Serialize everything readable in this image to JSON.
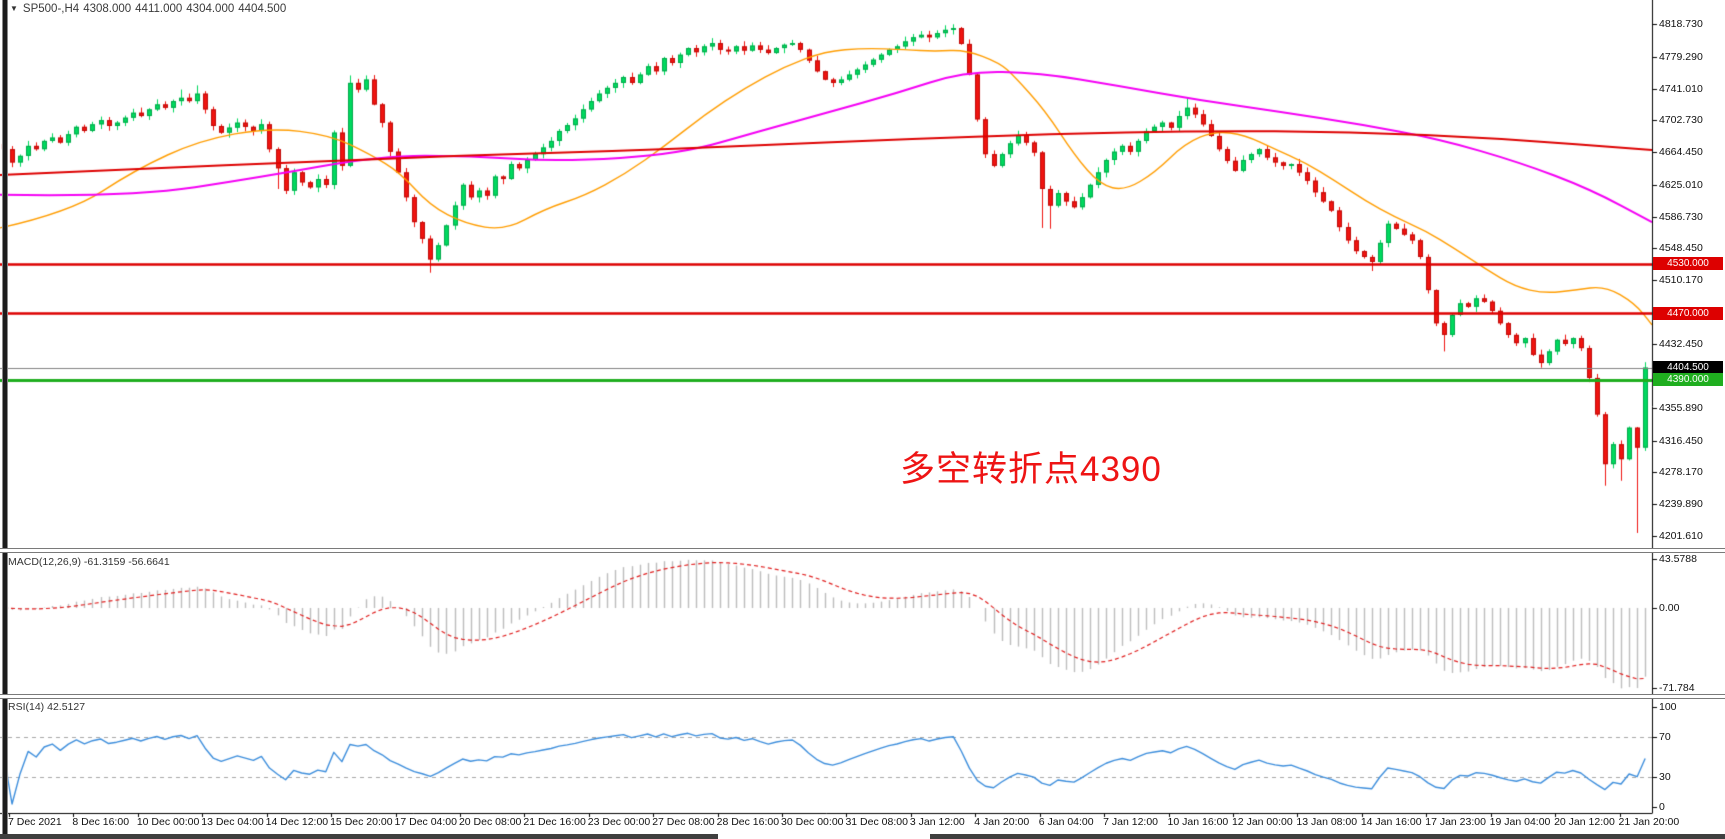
{
  "title": {
    "symbol_period": "SP500-,H4",
    "open": "4308.000",
    "high": "4411.000",
    "low": "4304.000",
    "close": "4404.500"
  },
  "annotation": {
    "text": "多空转折点4390",
    "color": "#ee1414"
  },
  "price_axis": {
    "ticks": [
      {
        "label": "4818.730",
        "value": 4818.73
      },
      {
        "label": "4779.290",
        "value": 4779.29
      },
      {
        "label": "4741.010",
        "value": 4741.01
      },
      {
        "label": "4702.730",
        "value": 4702.73
      },
      {
        "label": "4664.450",
        "value": 4664.45
      },
      {
        "label": "4625.010",
        "value": 4625.01
      },
      {
        "label": "4586.730",
        "value": 4586.73
      },
      {
        "label": "4548.450",
        "value": 4548.45
      },
      {
        "label": "4510.170",
        "value": 4510.17
      },
      {
        "label": "4432.450",
        "value": 4432.45
      },
      {
        "label": "4355.890",
        "value": 4355.89
      },
      {
        "label": "4316.450",
        "value": 4316.45
      },
      {
        "label": "4278.170",
        "value": 4278.17
      },
      {
        "label": "4239.890",
        "value": 4239.89
      },
      {
        "label": "4201.610",
        "value": 4201.61
      }
    ],
    "badges": [
      {
        "label": "4530.000",
        "value": 4530,
        "bg": "#dd0000"
      },
      {
        "label": "4470.000",
        "value": 4470,
        "bg": "#dd0000"
      },
      {
        "label": "4404.500",
        "value": 4404.5,
        "bg": "#000000"
      },
      {
        "label": "4390.000",
        "value": 4390,
        "bg": "#1fae1f"
      }
    ]
  },
  "hlines": [
    {
      "value": 4530,
      "color": "#dd0000",
      "width": 2.5
    },
    {
      "value": 4470,
      "color": "#dd0000",
      "width": 2.5
    },
    {
      "value": 4404.5,
      "color": "#808080",
      "width": 1
    },
    {
      "value": 4390,
      "color": "#1fae1f",
      "width": 3
    }
  ],
  "time_axis": {
    "labels": [
      "7 Dec 2021",
      "8 Dec 16:00",
      "10 Dec 00:00",
      "13 Dec 04:00",
      "14 Dec 12:00",
      "15 Dec 20:00",
      "17 Dec 04:00",
      "20 Dec 08:00",
      "21 Dec 16:00",
      "23 Dec 00:00",
      "27 Dec 08:00",
      "28 Dec 16:00",
      "30 Dec 00:00",
      "31 Dec 08:00",
      "3 Jan 12:00",
      "4 Jan 20:00",
      "6 Jan 04:00",
      "7 Jan 12:00",
      "10 Jan 16:00",
      "12 Jan 00:00",
      "13 Jan 08:00",
      "14 Jan 16:00",
      "17 Jan 23:00",
      "19 Jan 04:00",
      "20 Jan 12:00",
      "21 Jan 20:00"
    ]
  },
  "macd": {
    "label": "MACD(12,26,9)",
    "values_text": "-61.3159 -56.6641",
    "last_main": -61.3159,
    "last_signal": -56.6641,
    "params": {
      "fast": 12,
      "slow": 26,
      "signal": 9
    },
    "scale_labels": [
      {
        "label": "43.5788",
        "value": 43.5788
      },
      {
        "label": "0.00",
        "value": 0
      },
      {
        "label": "-71.784",
        "value": -71.784
      }
    ]
  },
  "rsi": {
    "label": "RSI(14)",
    "value_text": "42.5127",
    "last": 42.5127,
    "period": 14,
    "levels": [
      70,
      30
    ],
    "scale_labels": [
      {
        "label": "100",
        "value": 100
      },
      {
        "label": "70",
        "value": 70
      },
      {
        "label": "30",
        "value": 30
      },
      {
        "label": "0",
        "value": 0
      }
    ]
  },
  "colors": {
    "up": "#00d95e",
    "up_edge": "#00a84a",
    "down": "#ef1410",
    "down_edge": "#bf0a08",
    "ma_fast": "#ff9d00",
    "ma_mid": "#f400f4",
    "ma_slow": "#dd0000",
    "macd_hist": "#bdbdbd",
    "macd_signal": "#e02020",
    "rsi_line": "#3d8edc",
    "axis": "#000000",
    "level_dash": "#a6a6a6"
  },
  "chart_data": {
    "type": "candlestick",
    "symbol": "SP500",
    "timeframe": "H4",
    "title": "SP500-,H4 4308.000 4411.000 4304.000 4404.500",
    "ylim": [
      4196.5,
      4848
    ],
    "bars": 205,
    "closes": [
      4668,
      4652,
      4660,
      4672,
      4668,
      4678,
      4682,
      4676,
      4686,
      4695,
      4690,
      4698,
      4703,
      4696,
      4700,
      4706,
      4712,
      4708,
      4716,
      4722,
      4718,
      4726,
      4730,
      4726,
      4735,
      4716,
      4696,
      4688,
      4694,
      4700,
      4695,
      4690,
      4698,
      4668,
      4645,
      4618,
      4640,
      4628,
      4622,
      4632,
      4625,
      4688,
      4648,
      4748,
      4740,
      4752,
      4722,
      4700,
      4665,
      4640,
      4610,
      4580,
      4560,
      4535,
      4552,
      4576,
      4600,
      4625,
      4610,
      4618,
      4612,
      4635,
      4632,
      4650,
      4645,
      4655,
      4662,
      4670,
      4678,
      4690,
      4697,
      4705,
      4716,
      4726,
      4735,
      4742,
      4748,
      4755,
      4748,
      4758,
      4768,
      4762,
      4778,
      4772,
      4782,
      4790,
      4785,
      4792,
      4796,
      4788,
      4786,
      4792,
      4787,
      4793,
      4788,
      4784,
      4790,
      4794,
      4796,
      4788,
      4775,
      4762,
      4752,
      4748,
      4752,
      4758,
      4764,
      4770,
      4776,
      4782,
      4788,
      4792,
      4798,
      4803,
      4806,
      4803,
      4808,
      4812,
      4814,
      4795,
      4758,
      4704,
      4662,
      4648,
      4662,
      4675,
      4685,
      4676,
      4664,
      4620,
      4600,
      4615,
      4605,
      4598,
      4610,
      4625,
      4640,
      4655,
      4665,
      4672,
      4665,
      4678,
      4690,
      4695,
      4700,
      4694,
      4708,
      4718,
      4710,
      4698,
      4684,
      4668,
      4654,
      4642,
      4655,
      4662,
      4668,
      4658,
      4652,
      4648,
      4650,
      4640,
      4630,
      4616,
      4605,
      4594,
      4574,
      4558,
      4545,
      4538,
      4532,
      4555,
      4578,
      4572,
      4565,
      4558,
      4538,
      4498,
      4458,
      4444,
      4468,
      4482,
      4478,
      4488,
      4484,
      4473,
      4458,
      4444,
      4434,
      4440,
      4420,
      4410,
      4424,
      4438,
      4433,
      4440,
      4428,
      4392,
      4348,
      4288,
      4312,
      4294,
      4332,
      4308,
      4404.5
    ],
    "wick_highs": {
      "22": 4740,
      "24": 4745,
      "43": 4757,
      "45": 4757,
      "88": 4802,
      "118": 4818.7,
      "147": 4730
    },
    "wick_lows": {
      "34": 4620,
      "53": 4519,
      "129": 4573,
      "130": 4572,
      "170": 4521,
      "179": 4424,
      "199": 4262,
      "201": 4268,
      "203": 4205
    },
    "last_candle": {
      "open": 4308,
      "high": 4411,
      "low": 4304,
      "close": 4404.5
    },
    "ma_lines": [
      {
        "name": "MA fast (orange)",
        "color": "#ff9d00",
        "width": 1.4,
        "anchors": [
          [
            0,
            4573
          ],
          [
            70,
            4592
          ],
          [
            135,
            4643
          ],
          [
            200,
            4679
          ],
          [
            270,
            4694
          ],
          [
            330,
            4685
          ],
          [
            370,
            4662
          ],
          [
            400,
            4640
          ],
          [
            430,
            4600
          ],
          [
            465,
            4578
          ],
          [
            505,
            4570
          ],
          [
            545,
            4596
          ],
          [
            585,
            4612
          ],
          [
            625,
            4638
          ],
          [
            665,
            4672
          ],
          [
            705,
            4710
          ],
          [
            745,
            4742
          ],
          [
            785,
            4768
          ],
          [
            825,
            4786
          ],
          [
            865,
            4790
          ],
          [
            905,
            4788
          ],
          [
            935,
            4786
          ],
          [
            965,
            4788
          ],
          [
            1000,
            4772
          ],
          [
            1015,
            4755
          ],
          [
            1045,
            4715
          ],
          [
            1075,
            4660
          ],
          [
            1100,
            4625
          ],
          [
            1125,
            4618
          ],
          [
            1155,
            4640
          ],
          [
            1185,
            4675
          ],
          [
            1215,
            4690
          ],
          [
            1245,
            4685
          ],
          [
            1275,
            4668
          ],
          [
            1305,
            4652
          ],
          [
            1335,
            4630
          ],
          [
            1365,
            4606
          ],
          [
            1395,
            4586
          ],
          [
            1425,
            4570
          ],
          [
            1455,
            4548
          ],
          [
            1485,
            4524
          ],
          [
            1515,
            4502
          ],
          [
            1545,
            4494
          ],
          [
            1575,
            4498
          ],
          [
            1605,
            4503
          ],
          [
            1635,
            4482
          ],
          [
            1652,
            4456
          ]
        ]
      },
      {
        "name": "MA mid (magenta)",
        "color": "#f400f4",
        "width": 2,
        "anchors": [
          [
            0,
            4613
          ],
          [
            130,
            4610
          ],
          [
            260,
            4634
          ],
          [
            380,
            4660
          ],
          [
            470,
            4660
          ],
          [
            560,
            4653
          ],
          [
            680,
            4662
          ],
          [
            760,
            4690
          ],
          [
            830,
            4713
          ],
          [
            895,
            4735
          ],
          [
            965,
            4762
          ],
          [
            1040,
            4760
          ],
          [
            1120,
            4744
          ],
          [
            1200,
            4727
          ],
          [
            1280,
            4713
          ],
          [
            1360,
            4698
          ],
          [
            1440,
            4680
          ],
          [
            1520,
            4652
          ],
          [
            1590,
            4620
          ],
          [
            1652,
            4580
          ]
        ]
      },
      {
        "name": "MA slow (red)",
        "color": "#dd0000",
        "width": 2,
        "anchors": [
          [
            0,
            4637
          ],
          [
            150,
            4645
          ],
          [
            300,
            4652
          ],
          [
            450,
            4660
          ],
          [
            600,
            4665
          ],
          [
            750,
            4672
          ],
          [
            900,
            4680
          ],
          [
            1050,
            4686
          ],
          [
            1200,
            4690
          ],
          [
            1350,
            4689
          ],
          [
            1500,
            4681
          ],
          [
            1652,
            4667
          ]
        ]
      }
    ]
  }
}
